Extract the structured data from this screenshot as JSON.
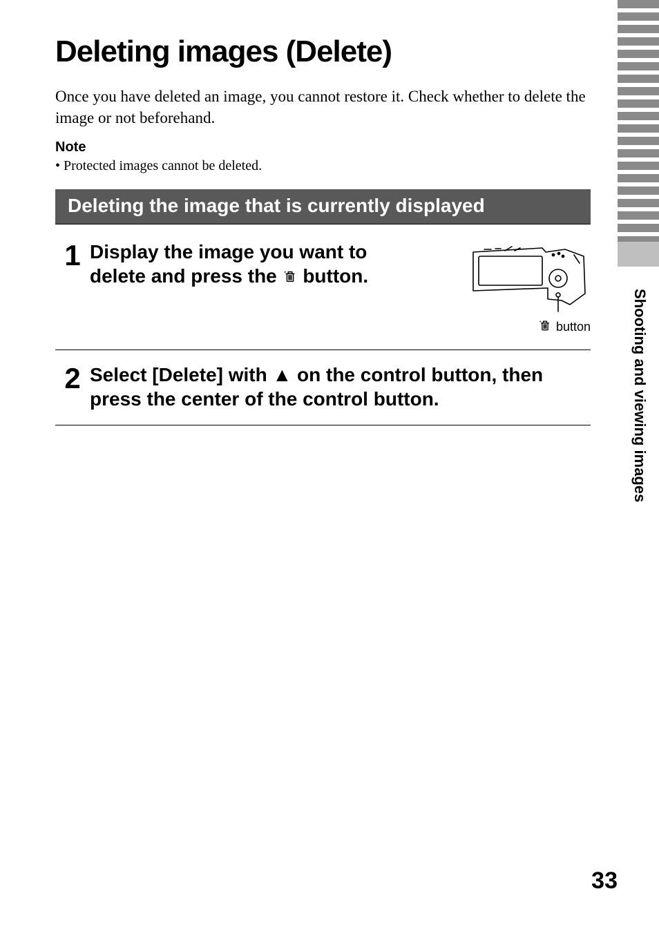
{
  "title": "Deleting images (Delete)",
  "intro": "Once you have deleted an image, you cannot restore it. Check whether to delete the image or not beforehand.",
  "note_label": "Note",
  "note_bullet": "• Protected images cannot be deleted.",
  "section_heading": "Deleting the image that is currently displayed",
  "steps": [
    {
      "number": "1",
      "text_before_icon": "Display the image you want to delete and press the ",
      "text_after_icon": " button.",
      "illustration_caption": " button"
    },
    {
      "number": "2",
      "text": "Select [Delete] with ▲ on the control button, then press the center of the control button."
    }
  ],
  "side_label": "Shooting and viewing images",
  "page_number": "33",
  "colors": {
    "section_bar_bg": "#595959",
    "section_bar_text": "#ffffff",
    "stripe": "#8a8a8a",
    "tab_solid": "#bfbfbf",
    "text": "#000000",
    "page_bg": "#ffffff"
  },
  "stripe_count": 20
}
